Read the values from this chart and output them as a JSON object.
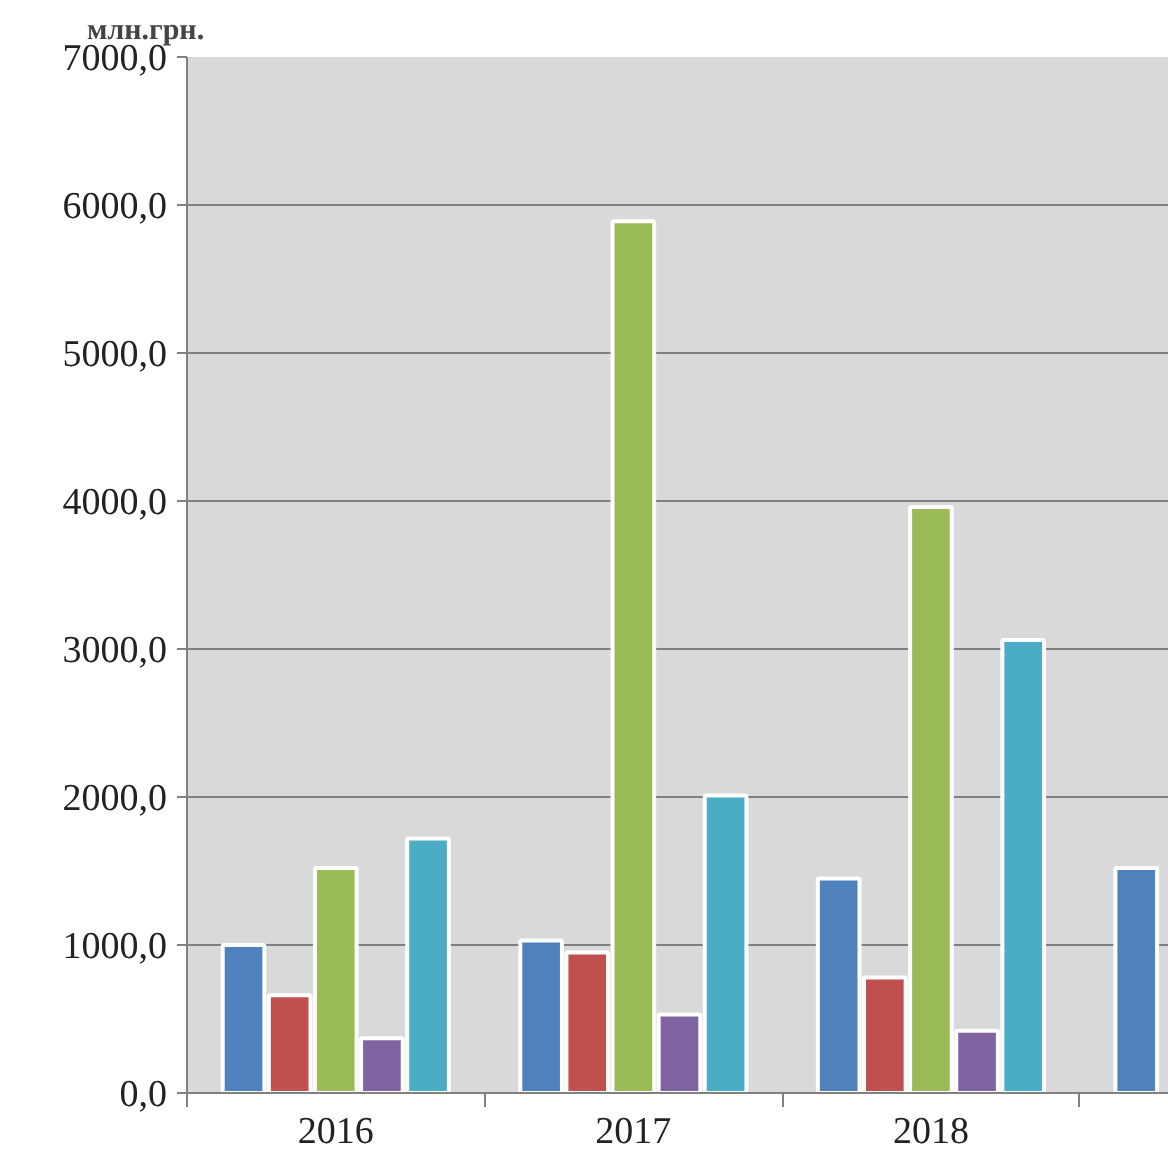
{
  "chart_data": {
    "type": "bar",
    "ylabel": "млн.грн.",
    "categories": [
      "2016",
      "2017",
      "2018",
      null
    ],
    "series": [
      {
        "color": "#4f81bd",
        "values": [
          1000,
          1030,
          1450,
          1520
        ]
      },
      {
        "color": "#c0504d",
        "values": [
          660,
          950,
          780,
          null
        ]
      },
      {
        "color": "#9bbb59",
        "values": [
          1520,
          5890,
          3960,
          null
        ]
      },
      {
        "color": "#8064a2",
        "values": [
          370,
          530,
          420,
          null
        ]
      },
      {
        "color": "#4bacc6",
        "values": [
          1720,
          2010,
          3060,
          null
        ]
      }
    ],
    "ylim": [
      0,
      7000
    ],
    "yticks": [
      {
        "value": 0,
        "label": "0,0"
      },
      {
        "value": 1000,
        "label": "1000,0"
      },
      {
        "value": 2000,
        "label": "2000,0"
      },
      {
        "value": 3000,
        "label": "3000,0"
      },
      {
        "value": 4000,
        "label": "4000,0"
      },
      {
        "value": 5000,
        "label": "5000,0"
      },
      {
        "value": 6000,
        "label": "6000,0"
      },
      {
        "value": 7000,
        "label": "7000,0"
      }
    ],
    "grid": "y"
  }
}
